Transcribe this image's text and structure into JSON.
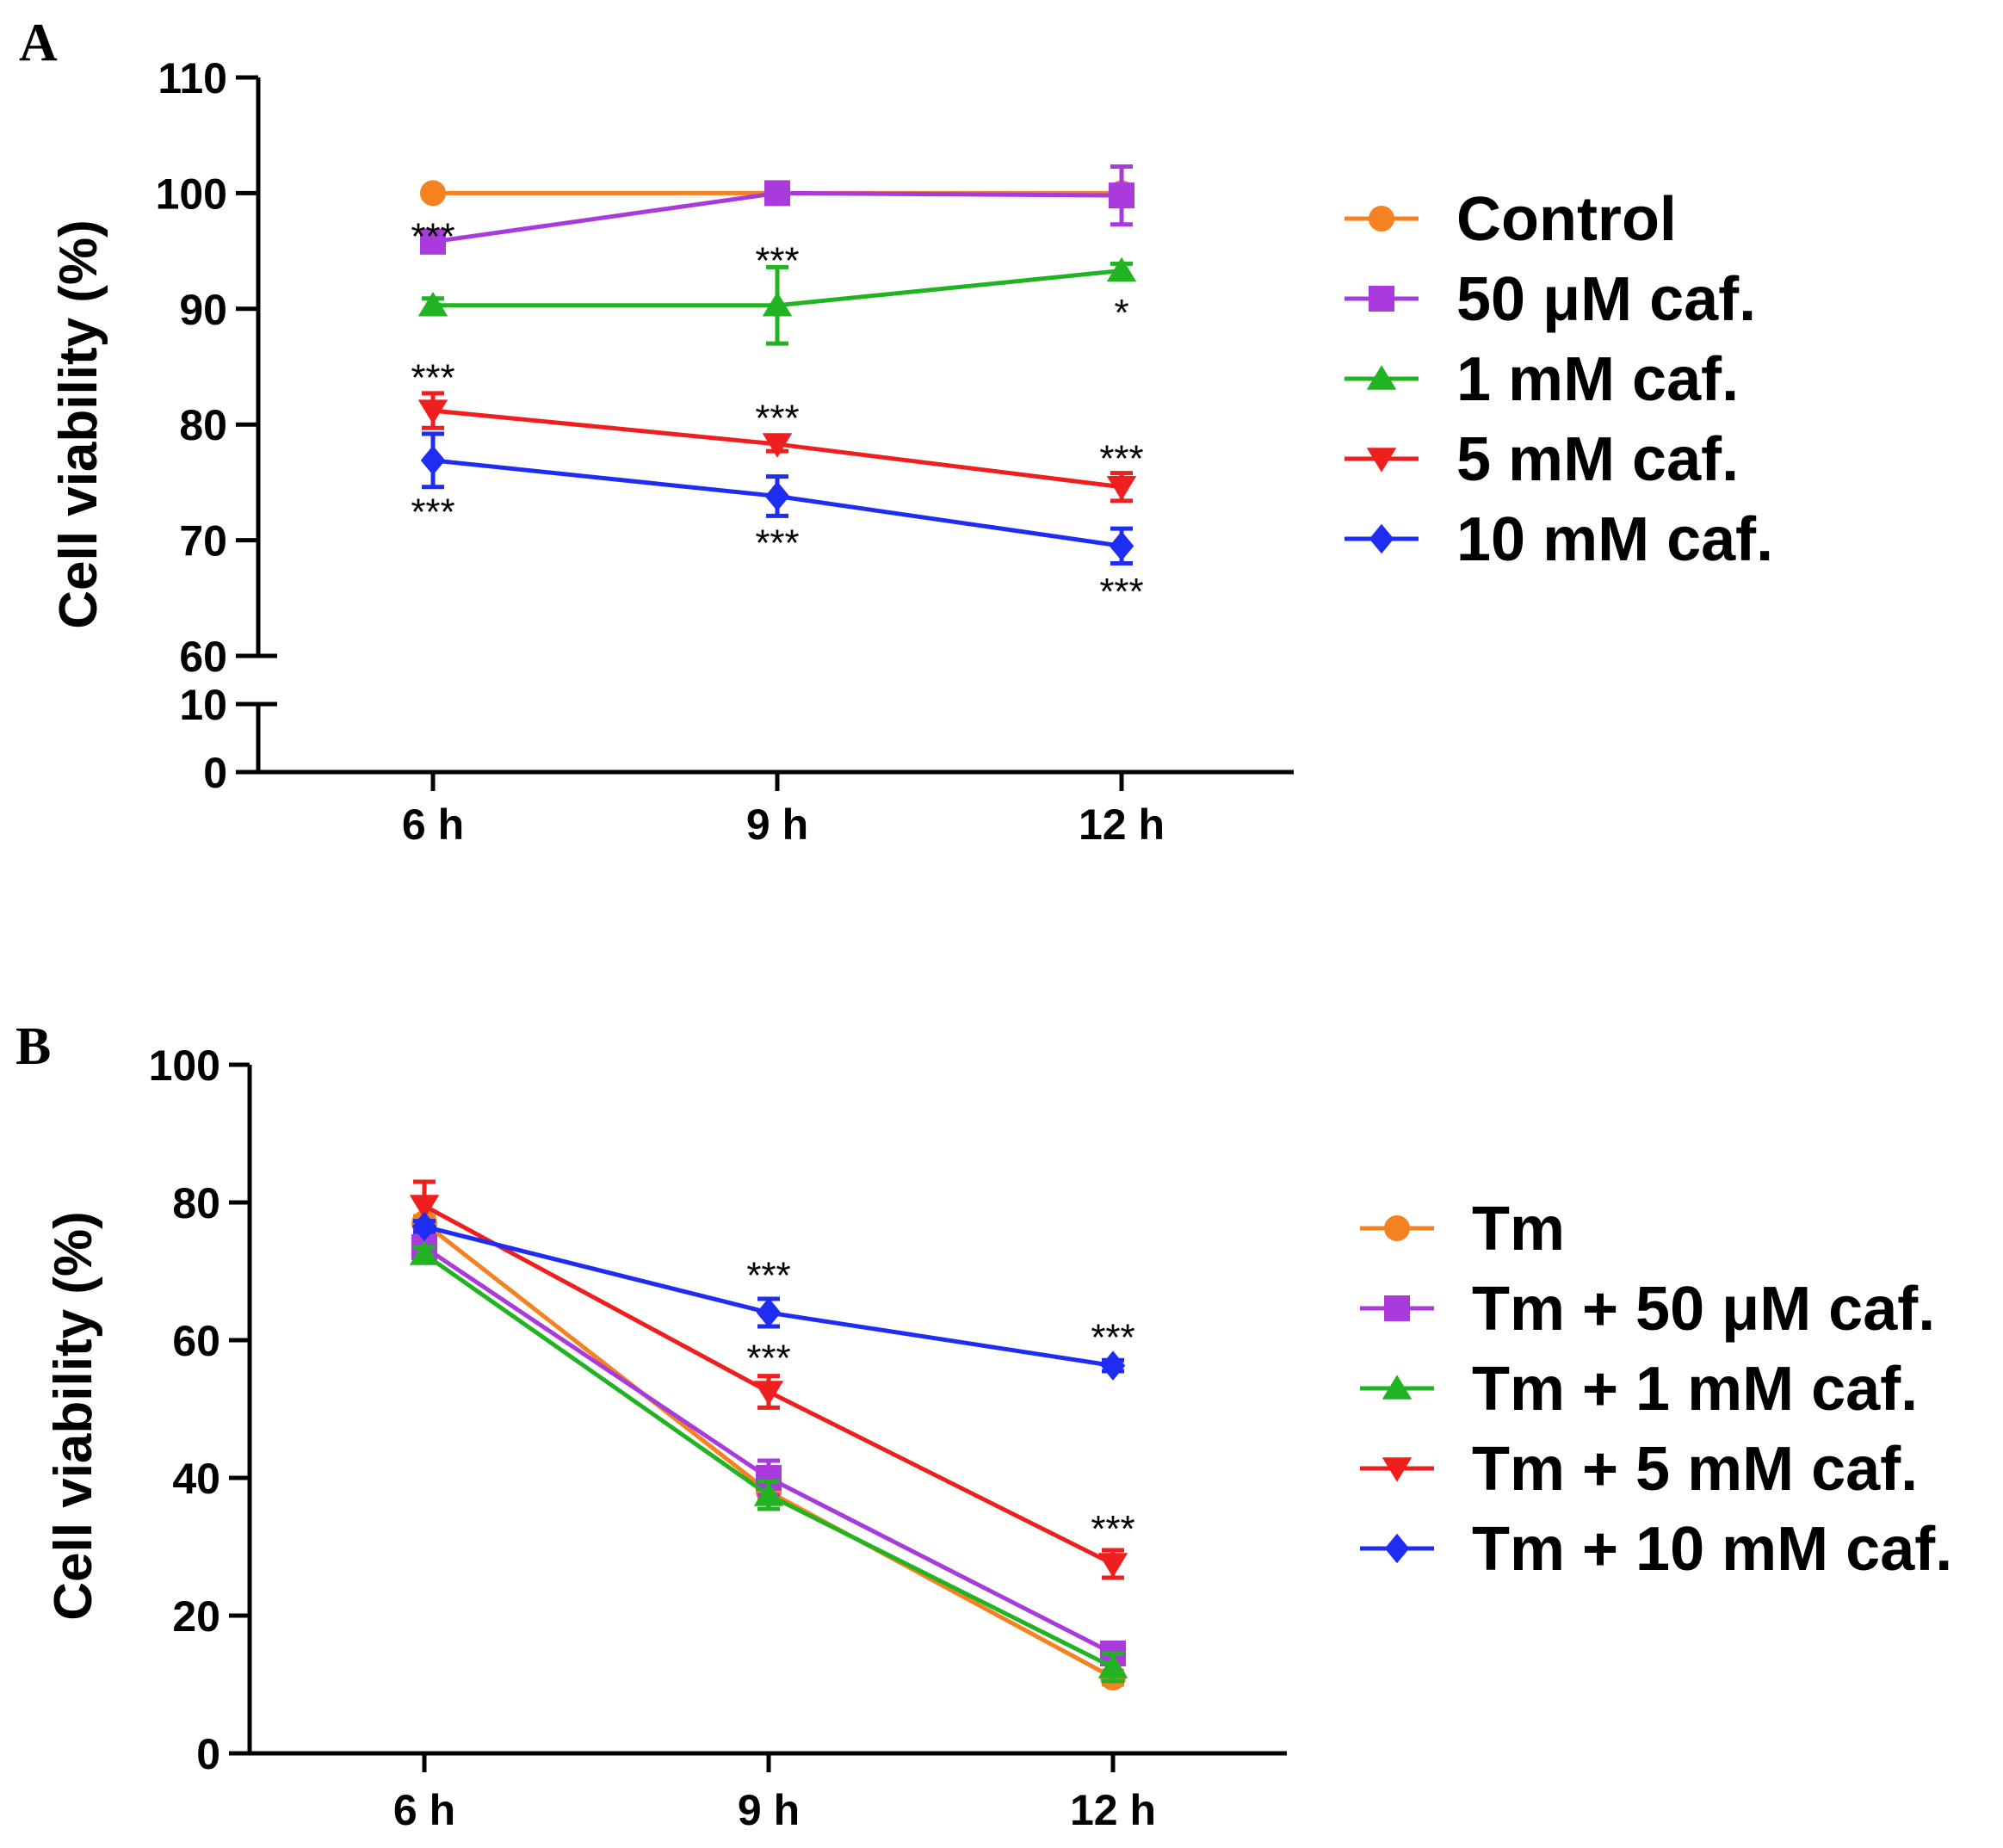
{
  "chart_data": [
    {
      "type": "line",
      "panel_label": "A",
      "categories": [
        "6 h",
        "9 h",
        "12 h"
      ],
      "ylabel": "Cell viability (%)",
      "y_axis_break": true,
      "y_lower_ticks": [
        0,
        10
      ],
      "y_upper_ticks": [
        60,
        70,
        80,
        90,
        100,
        110
      ],
      "ylim_lower": [
        0,
        10
      ],
      "ylim_upper": [
        60,
        110
      ],
      "legend_position": "right",
      "series": [
        {
          "name": "Control",
          "color": "#f58220",
          "marker": "circle",
          "values": [
            100,
            100,
            100
          ],
          "errors": [
            0,
            0,
            0
          ]
        },
        {
          "name": "50 μM caf.",
          "color": "#a93bdc",
          "marker": "square",
          "values": [
            95.8,
            100,
            99.8
          ],
          "errors": [
            0.8,
            0.8,
            2.5
          ]
        },
        {
          "name": "1 mM caf.",
          "color": "#21b321",
          "marker": "triangle-up",
          "values": [
            90.3,
            90.3,
            93.3
          ],
          "errors": [
            0.6,
            3.3,
            0.6
          ]
        },
        {
          "name": "5 mM caf.",
          "color": "#ef1f1f",
          "marker": "triangle-down",
          "values": [
            81.2,
            78.3,
            74.6
          ],
          "errors": [
            1.5,
            0.6,
            1.2
          ]
        },
        {
          "name": "10 mM caf.",
          "color": "#1f2cf2",
          "marker": "diamond",
          "values": [
            76.9,
            73.8,
            69.5
          ],
          "errors": [
            2.3,
            1.7,
            1.5
          ]
        }
      ],
      "annotations": [
        {
          "category": "6 h",
          "y": 96.5,
          "text": "***"
        },
        {
          "category": "9 h",
          "y": 94.4,
          "text": "***"
        },
        {
          "category": "12 h",
          "y": 89.9,
          "text": "*"
        },
        {
          "category": "6 h",
          "y": 84.3,
          "text": "***"
        },
        {
          "category": "9 h",
          "y": 80.8,
          "text": "***"
        },
        {
          "category": "12 h",
          "y": 77.3,
          "text": "***"
        },
        {
          "category": "6 h",
          "y": 72.7,
          "text": "***"
        },
        {
          "category": "9 h",
          "y": 70.0,
          "text": "***"
        },
        {
          "category": "12 h",
          "y": 65.8,
          "text": "***"
        }
      ]
    },
    {
      "type": "line",
      "panel_label": "B",
      "categories": [
        "6 h",
        "9 h",
        "12 h"
      ],
      "ylabel": "Cell viability (%)",
      "yticks": [
        0,
        20,
        40,
        60,
        80,
        100
      ],
      "ylim": [
        0,
        100
      ],
      "legend_position": "right",
      "series": [
        {
          "name": "Tm",
          "color": "#f58220",
          "marker": "circle",
          "values": [
            77,
            38,
            11
          ],
          "errors": [
            1,
            1,
            1
          ]
        },
        {
          "name": "Tm + 50 μM caf.",
          "color": "#a93bdc",
          "marker": "square",
          "values": [
            73.5,
            40,
            14.5
          ],
          "errors": [
            1,
            2.5,
            1.2
          ]
        },
        {
          "name": "Tm + 1 mM caf.",
          "color": "#21b321",
          "marker": "triangle-up",
          "values": [
            72.5,
            37.5,
            12.5
          ],
          "errors": [
            1,
            2,
            2
          ]
        },
        {
          "name": "Tm + 5 mM caf.",
          "color": "#ef1f1f",
          "marker": "triangle-down",
          "values": [
            79.5,
            52.5,
            27.5
          ],
          "errors": [
            3.5,
            2.3,
            2
          ]
        },
        {
          "name": "Tm + 10 mM caf.",
          "color": "#1f2cf2",
          "marker": "diamond",
          "values": [
            76.5,
            64,
            56.3
          ],
          "errors": [
            0.8,
            2,
            0.8
          ]
        }
      ],
      "annotations": [
        {
          "category": "9 h",
          "y": 69.8,
          "text": "***"
        },
        {
          "category": "12 h",
          "y": 60.8,
          "text": "***"
        },
        {
          "category": "9 h",
          "y": 57.8,
          "text": "***"
        },
        {
          "category": "12 h",
          "y": 33.0,
          "text": "***"
        }
      ]
    }
  ]
}
